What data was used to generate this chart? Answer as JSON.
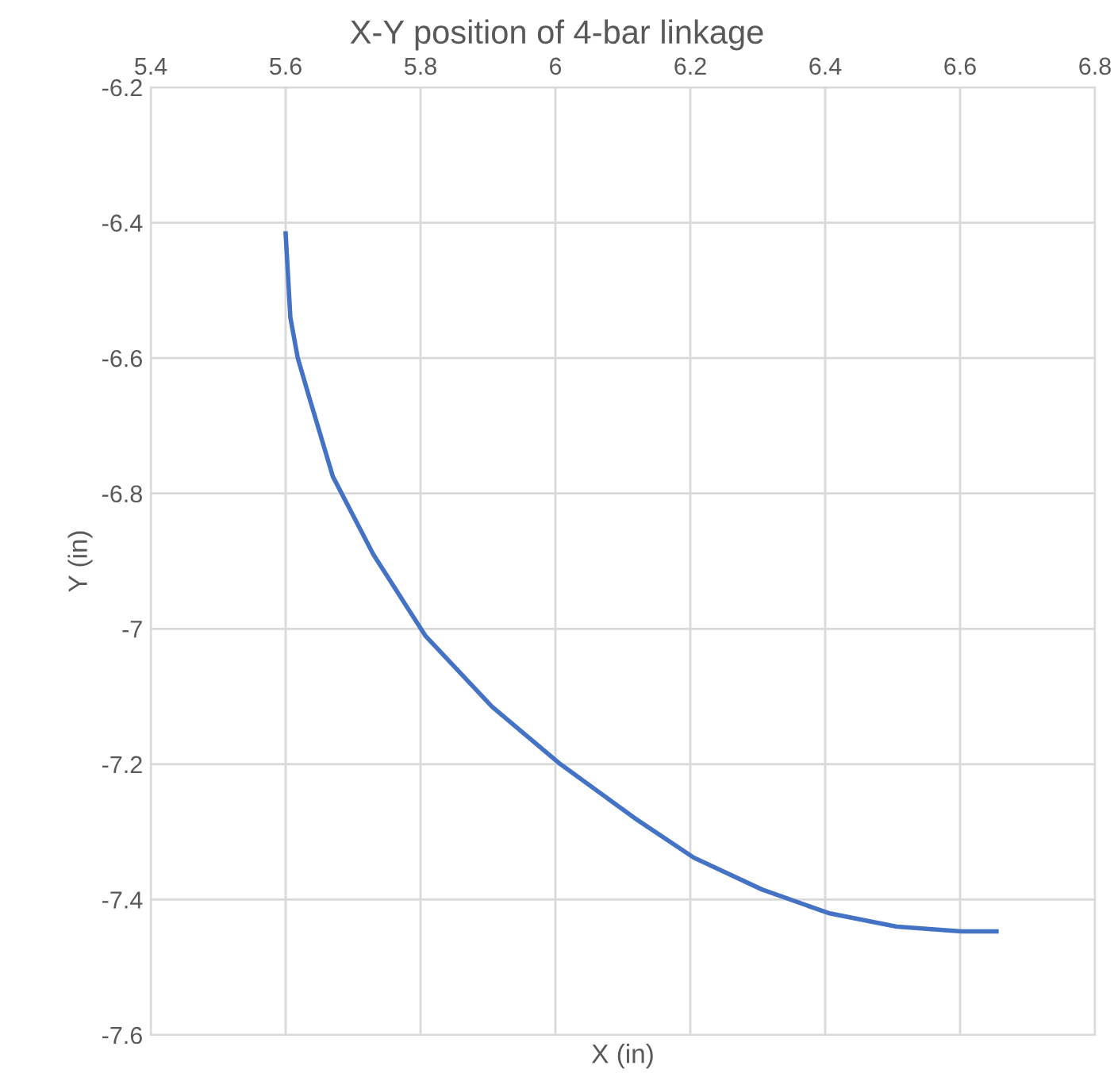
{
  "chart_data": {
    "type": "line",
    "title": "X-Y position of 4-bar linkage",
    "xlabel": "X (in)",
    "ylabel": "Y (in)",
    "series": [
      {
        "color": "#4472c4",
        "x": [
          5.6,
          5.607,
          5.618,
          5.635,
          5.67,
          5.73,
          5.807,
          5.906,
          6.005,
          6.118,
          6.205,
          6.306,
          6.405,
          6.506,
          6.602,
          6.654
        ],
        "values": [
          -6.416,
          -6.54,
          -6.6,
          -6.658,
          -6.775,
          -6.89,
          -7.01,
          -7.115,
          -7.198,
          -7.28,
          -7.338,
          -7.385,
          -7.42,
          -7.44,
          -7.447,
          -7.447
        ]
      }
    ],
    "xlim": [
      5.4,
      6.8
    ],
    "xticks": [
      5.4,
      5.6,
      5.8,
      6,
      6.2,
      6.4,
      6.6,
      6.8
    ],
    "ylim": [
      -7.6,
      -6.2
    ],
    "yticks": [
      -7.6,
      -7.4,
      -7.2,
      -7,
      -6.8,
      -6.6,
      -6.4,
      -6.2
    ],
    "grid": true,
    "marker": "none",
    "line_style": "solid"
  }
}
